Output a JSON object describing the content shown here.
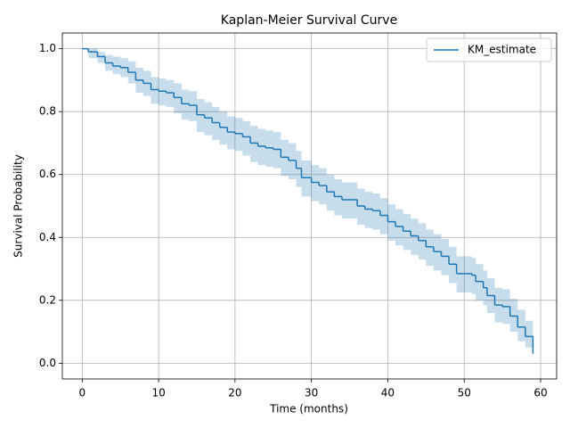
{
  "chart_data": {
    "type": "step",
    "title": "Kaplan-Meier Survival Curve",
    "x_label": "Time (months)",
    "y_label": "Survival Probability",
    "x": [
      0,
      0.8,
      2,
      3,
      4,
      5,
      6,
      7,
      8,
      9,
      10,
      11,
      12,
      13,
      14,
      15,
      16,
      17,
      18,
      19,
      20,
      21,
      22,
      23,
      24,
      25,
      26,
      27,
      28,
      28.7,
      30,
      31,
      32,
      33,
      34,
      36,
      37,
      38,
      39,
      40,
      41,
      42,
      43,
      44,
      45,
      46,
      47,
      48,
      49,
      51,
      51.5,
      52.5,
      53,
      54,
      55,
      56,
      57,
      58,
      59
    ],
    "series": [
      {
        "name": "KM_estimate",
        "color": "#1f77b4",
        "values": [
          1.0,
          0.99,
          0.975,
          0.955,
          0.945,
          0.94,
          0.925,
          0.9,
          0.89,
          0.87,
          0.865,
          0.86,
          0.845,
          0.825,
          0.82,
          0.79,
          0.78,
          0.765,
          0.75,
          0.735,
          0.73,
          0.72,
          0.7,
          0.69,
          0.685,
          0.68,
          0.655,
          0.645,
          0.62,
          0.59,
          0.575,
          0.565,
          0.545,
          0.53,
          0.52,
          0.5,
          0.49,
          0.485,
          0.47,
          0.45,
          0.435,
          0.42,
          0.405,
          0.39,
          0.37,
          0.355,
          0.34,
          0.315,
          0.285,
          0.28,
          0.26,
          0.24,
          0.215,
          0.185,
          0.18,
          0.15,
          0.115,
          0.085,
          0.03
        ],
        "ci_upper": [
          1.0,
          1.0,
          0.99,
          0.98,
          0.975,
          0.97,
          0.96,
          0.94,
          0.93,
          0.91,
          0.905,
          0.9,
          0.89,
          0.87,
          0.865,
          0.84,
          0.83,
          0.815,
          0.8,
          0.785,
          0.78,
          0.77,
          0.755,
          0.745,
          0.74,
          0.735,
          0.71,
          0.7,
          0.675,
          0.645,
          0.63,
          0.62,
          0.6,
          0.585,
          0.575,
          0.555,
          0.545,
          0.54,
          0.525,
          0.505,
          0.49,
          0.475,
          0.46,
          0.445,
          0.425,
          0.41,
          0.395,
          0.37,
          0.34,
          0.335,
          0.315,
          0.295,
          0.27,
          0.24,
          0.235,
          0.205,
          0.17,
          0.135,
          0.085
        ],
        "ci_lower": [
          1.0,
          0.97,
          0.955,
          0.93,
          0.92,
          0.91,
          0.89,
          0.86,
          0.85,
          0.825,
          0.82,
          0.815,
          0.795,
          0.775,
          0.77,
          0.735,
          0.725,
          0.71,
          0.695,
          0.68,
          0.675,
          0.66,
          0.64,
          0.63,
          0.625,
          0.62,
          0.595,
          0.585,
          0.56,
          0.53,
          0.515,
          0.505,
          0.485,
          0.47,
          0.46,
          0.44,
          0.43,
          0.425,
          0.41,
          0.39,
          0.375,
          0.36,
          0.345,
          0.33,
          0.31,
          0.295,
          0.28,
          0.255,
          0.225,
          0.22,
          0.2,
          0.185,
          0.16,
          0.13,
          0.125,
          0.1,
          0.07,
          0.05,
          0.013
        ]
      }
    ],
    "xlim": [
      -2.6,
      62.1
    ],
    "ylim": [
      -0.05,
      1.05
    ],
    "xticks": [
      0,
      10,
      20,
      30,
      40,
      50,
      60
    ],
    "yticks": [
      {
        "value": 0,
        "label": "0.0"
      },
      {
        "value": 0.2,
        "label": "0.2"
      },
      {
        "value": 0.4,
        "label": "0.4"
      },
      {
        "value": 0.6,
        "label": "0.6"
      },
      {
        "value": 0.8,
        "label": "0.8"
      },
      {
        "value": 1,
        "label": "1.0"
      }
    ],
    "grid": true,
    "legend": "upper right"
  }
}
